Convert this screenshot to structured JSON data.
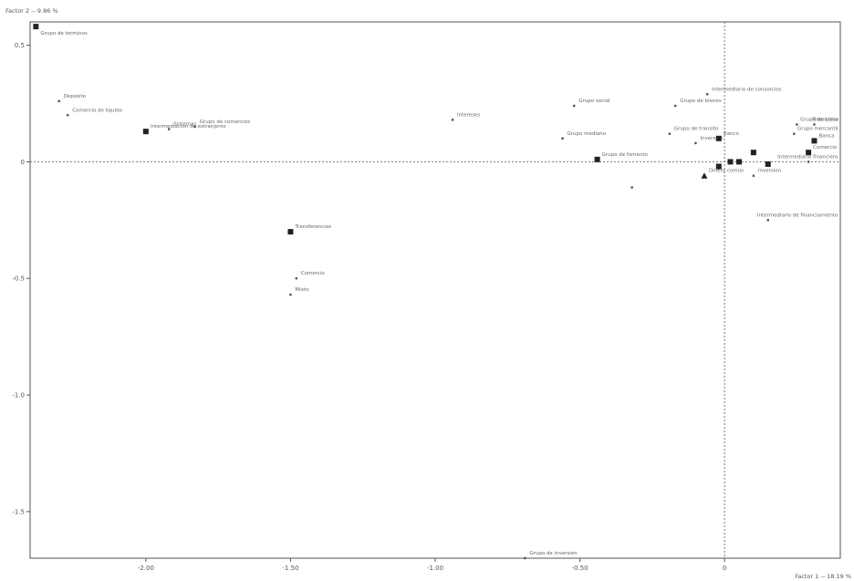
{
  "chart_data": {
    "type": "scatter",
    "title": "",
    "xlabel": "Factor 1 -- 18.19 %",
    "ylabel": "Factor 2 -- 9.86 %",
    "xlim": [
      -2.4,
      0.4
    ],
    "ylim": [
      -1.7,
      0.6
    ],
    "x_ticks": [
      "-2.00",
      "-1.50",
      "-1.00",
      "-0.50",
      "0"
    ],
    "y_ticks": [
      "0.5",
      "0",
      "-0.5",
      "-1.0",
      "-1.5"
    ],
    "grid": false,
    "reference_lines": "dashed axes through origin",
    "points": [
      {
        "x": -2.38,
        "y": 0.58,
        "marker": "square",
        "label": "Grupo de terminos"
      },
      {
        "x": -2.3,
        "y": 0.26,
        "marker": "small",
        "label": "Deposito"
      },
      {
        "x": -2.27,
        "y": 0.2,
        "marker": "small",
        "label": "Comercio de liquido"
      },
      {
        "x": -1.92,
        "y": 0.14,
        "marker": "small",
        "label": "Sistemas"
      },
      {
        "x": -1.83,
        "y": 0.15,
        "marker": "small",
        "label": "Grupo de comercios"
      },
      {
        "x": -2.0,
        "y": 0.13,
        "marker": "square",
        "label": "Intermediacion de extranjeros"
      },
      {
        "x": -1.5,
        "y": -0.3,
        "marker": "square",
        "label": "Transferencias"
      },
      {
        "x": -1.48,
        "y": -0.5,
        "marker": "small",
        "label": "Comercio"
      },
      {
        "x": -1.5,
        "y": -0.57,
        "marker": "small",
        "label": "Mixto"
      },
      {
        "x": -0.94,
        "y": 0.18,
        "marker": "small",
        "label": "Intereses"
      },
      {
        "x": -0.52,
        "y": 0.24,
        "marker": "small",
        "label": "Grupo social"
      },
      {
        "x": -0.56,
        "y": 0.1,
        "marker": "small",
        "label": "Grupo mediano"
      },
      {
        "x": -0.44,
        "y": 0.01,
        "marker": "square",
        "label": "Grupo de fomento"
      },
      {
        "x": -0.32,
        "y": -0.11,
        "marker": "small",
        "label": ""
      },
      {
        "x": -0.17,
        "y": 0.24,
        "marker": "small",
        "label": "Grupo de bienes"
      },
      {
        "x": -0.06,
        "y": 0.29,
        "marker": "small",
        "label": "Intermediario de consorcios"
      },
      {
        "x": -0.19,
        "y": 0.12,
        "marker": "small",
        "label": "Grupo de transito"
      },
      {
        "x": -0.1,
        "y": 0.08,
        "marker": "small",
        "label": "Inversion"
      },
      {
        "x": -0.02,
        "y": 0.1,
        "marker": "square",
        "label": "Banco"
      },
      {
        "x": -0.07,
        "y": -0.06,
        "marker": "triangle",
        "label": "Dinero comun"
      },
      {
        "x": -0.02,
        "y": -0.02,
        "marker": "square",
        "label": ""
      },
      {
        "x": 0.02,
        "y": 0.0,
        "marker": "square",
        "label": ""
      },
      {
        "x": 0.05,
        "y": 0.0,
        "marker": "square",
        "label": ""
      },
      {
        "x": 0.1,
        "y": 0.04,
        "marker": "square",
        "label": ""
      },
      {
        "x": 0.1,
        "y": -0.06,
        "marker": "small",
        "label": "Inversion"
      },
      {
        "x": 0.15,
        "y": -0.01,
        "marker": "square",
        "label": ""
      },
      {
        "x": 0.15,
        "y": -0.25,
        "marker": "small",
        "label": "Intermediario de financiamiento"
      },
      {
        "x": 0.25,
        "y": 0.16,
        "marker": "small",
        "label": "Grupo de bolsa"
      },
      {
        "x": 0.24,
        "y": 0.12,
        "marker": "small",
        "label": "Grupo mercantil"
      },
      {
        "x": 0.31,
        "y": 0.16,
        "marker": "small",
        "label": "Financiero"
      },
      {
        "x": 0.29,
        "y": 0.04,
        "marker": "square",
        "label": "Comercio"
      },
      {
        "x": 0.31,
        "y": 0.09,
        "marker": "square",
        "label": "Banca"
      },
      {
        "x": 0.29,
        "y": 0.0,
        "marker": "small",
        "label": "Intermediario financiero"
      },
      {
        "x": -0.69,
        "y": -1.7,
        "marker": "small",
        "label": "Grupo de inversion"
      }
    ]
  }
}
